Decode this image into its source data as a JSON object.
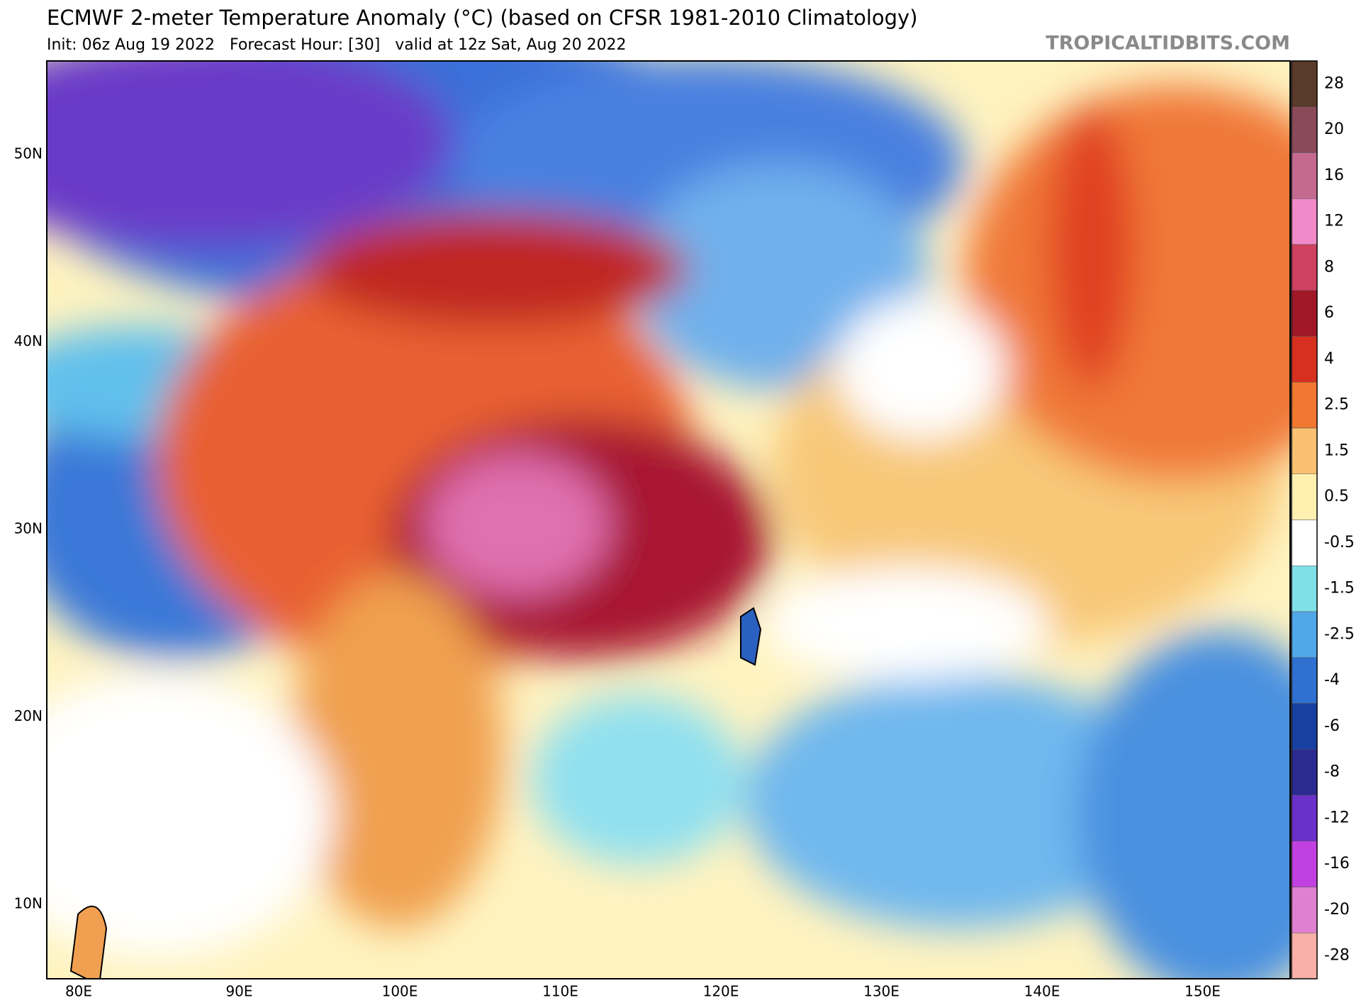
{
  "header": {
    "title": "ECMWF 2-meter Temperature Anomaly (°C) (based on CFSR 1981-2010 Climatology)",
    "subtitle": "Init: 06z Aug 19 2022   Forecast Hour: [30]   valid at 12z Sat, Aug 20 2022",
    "watermark": "TROPICALTIDBITS.COM"
  },
  "map": {
    "lat_labels": [
      "50N",
      "40N",
      "30N",
      "20N",
      "10N"
    ],
    "lon_labels": [
      "80E",
      "90E",
      "100E",
      "110E",
      "120E",
      "130E",
      "140E",
      "150E"
    ]
  },
  "colorbar": {
    "labels": [
      "28",
      "20",
      "16",
      "12",
      "8",
      "6",
      "4",
      "2.5",
      "1.5",
      "0.5",
      "-0.5",
      "-1.5",
      "-2.5",
      "-4",
      "-6",
      "-8",
      "-12",
      "-16",
      "-20",
      "-28"
    ],
    "colors": [
      "#5a3a2a",
      "#8a4a5a",
      "#c46a90",
      "#f08ac8",
      "#d04060",
      "#a01828",
      "#d83020",
      "#f07830",
      "#f8c070",
      "#fff0b0",
      "#ffffff",
      "#80e0e8",
      "#50a8e8",
      "#3070d0",
      "#1840a0",
      "#2a2a90",
      "#6a30c8",
      "#c040e0",
      "#e080d0",
      "#f8b0a8"
    ]
  }
}
